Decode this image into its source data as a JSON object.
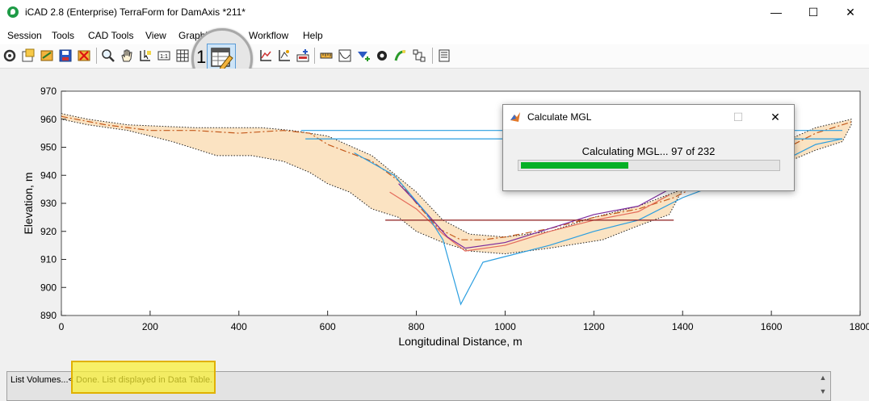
{
  "window": {
    "title": "iCAD 2.8  (Enterprise) TerraForm for DamAxis *211*",
    "minimize": "—",
    "maximize": "☐",
    "close": "✕"
  },
  "menu": [
    {
      "label": "Session"
    },
    {
      "label": "Tools"
    },
    {
      "label": "CAD Tools"
    },
    {
      "label": "View"
    },
    {
      "label": "Graphics"
    },
    {
      "label": "Workflow"
    },
    {
      "label": "Help"
    }
  ],
  "toolbar": {
    "icons": [
      "settings-icon",
      "open-session-icon",
      "import-icon",
      "save-icon",
      "delete-icon",
      "zoom-icon",
      "pan-hand-icon",
      "select-icon",
      "scale-1-1-icon",
      "grid-icon",
      "data-table-edit-icon",
      "profile-icon",
      "polyline-icon",
      "point-edit-icon",
      "export-icon",
      "measure-icon",
      "curve-icon",
      "insert-point-icon",
      "gear-icon",
      "path-icon",
      "network-icon",
      "report-icon"
    ],
    "magnifier_label": "1"
  },
  "chart_data": {
    "type": "line",
    "xlabel": "Longitudinal Distance, m",
    "ylabel": "Elevation, m",
    "xlim": [
      0,
      1800
    ],
    "ylim": [
      890,
      970
    ],
    "xticks": [
      0,
      200,
      400,
      600,
      800,
      1000,
      1200,
      1400,
      1600,
      1800
    ],
    "yticks": [
      890,
      900,
      910,
      920,
      930,
      940,
      950,
      960,
      970
    ],
    "band": {
      "upper": [
        [
          0,
          962
        ],
        [
          60,
          960
        ],
        [
          150,
          958
        ],
        [
          300,
          957
        ],
        [
          450,
          957
        ],
        [
          520,
          956
        ],
        [
          600,
          954
        ],
        [
          700,
          947
        ],
        [
          800,
          934
        ],
        [
          860,
          924
        ],
        [
          920,
          919
        ],
        [
          1000,
          918
        ],
        [
          1100,
          920
        ],
        [
          1200,
          925
        ],
        [
          1300,
          929
        ],
        [
          1400,
          935
        ],
        [
          1500,
          943
        ],
        [
          1600,
          950
        ],
        [
          1700,
          957
        ],
        [
          1780,
          960
        ]
      ],
      "lower": [
        [
          1780,
          958
        ],
        [
          1760,
          952
        ],
        [
          1700,
          949
        ],
        [
          1640,
          945
        ],
        [
          1560,
          941
        ],
        [
          1480,
          938
        ],
        [
          1400,
          935
        ],
        [
          1370,
          926
        ],
        [
          1300,
          922
        ],
        [
          1220,
          917
        ],
        [
          1100,
          914
        ],
        [
          1000,
          912
        ],
        [
          920,
          913
        ],
        [
          860,
          916
        ],
        [
          800,
          920
        ],
        [
          760,
          925
        ],
        [
          700,
          928
        ],
        [
          650,
          934
        ],
        [
          600,
          937
        ],
        [
          560,
          941
        ],
        [
          500,
          945
        ],
        [
          430,
          947
        ],
        [
          350,
          947
        ],
        [
          250,
          952
        ],
        [
          150,
          956
        ],
        [
          60,
          958
        ],
        [
          0,
          960
        ]
      ]
    },
    "series": [
      {
        "color": "#c45a1c",
        "dash": "8,3,2,3",
        "points": [
          [
            0,
            961
          ],
          [
            100,
            958
          ],
          [
            200,
            956
          ],
          [
            300,
            956
          ],
          [
            400,
            955
          ],
          [
            500,
            956
          ],
          [
            560,
            955
          ],
          [
            600,
            951
          ],
          [
            650,
            948
          ],
          [
            700,
            945
          ],
          [
            760,
            938
          ],
          [
            800,
            930
          ],
          [
            850,
            921
          ],
          [
            900,
            917
          ],
          [
            950,
            917
          ],
          [
            1000,
            918
          ],
          [
            1100,
            921
          ],
          [
            1200,
            925
          ],
          [
            1300,
            928
          ],
          [
            1380,
            932
          ],
          [
            1480,
            940
          ],
          [
            1600,
            947
          ],
          [
            1700,
            955
          ],
          [
            1780,
            959
          ]
        ]
      },
      {
        "color": "#e46a5a",
        "dash": "",
        "points": [
          [
            740,
            934
          ],
          [
            800,
            928
          ],
          [
            860,
            919
          ],
          [
            910,
            913
          ],
          [
            1000,
            915
          ],
          [
            1100,
            920
          ],
          [
            1200,
            924
          ],
          [
            1300,
            927
          ],
          [
            1370,
            933
          ]
        ]
      },
      {
        "color": "#7b2a9c",
        "dash": "",
        "points": [
          [
            760,
            937
          ],
          [
            820,
            927
          ],
          [
            870,
            918
          ],
          [
            910,
            914
          ],
          [
            1000,
            916
          ],
          [
            1100,
            921
          ],
          [
            1200,
            926
          ],
          [
            1300,
            929
          ],
          [
            1370,
            935
          ]
        ]
      },
      {
        "color": "#2a9ee0",
        "dash": "",
        "points": [
          [
            660,
            948
          ],
          [
            750,
            940
          ],
          [
            820,
            927
          ],
          [
            860,
            917
          ],
          [
            900,
            894
          ],
          [
            950,
            909
          ],
          [
            1000,
            911
          ],
          [
            1100,
            915
          ],
          [
            1200,
            920
          ],
          [
            1300,
            924
          ],
          [
            1400,
            932
          ],
          [
            1500,
            938
          ],
          [
            1600,
            943
          ],
          [
            1700,
            951
          ],
          [
            1760,
            953
          ]
        ]
      },
      {
        "color": "#2a9ee0",
        "dash": "",
        "points": [
          [
            540,
            956
          ],
          [
            1760,
            956
          ]
        ]
      },
      {
        "color": "#2a9ee0",
        "dash": "",
        "points": [
          [
            550,
            953
          ],
          [
            1760,
            953
          ]
        ]
      },
      {
        "color": "#8e1c1c",
        "dash": "",
        "points": [
          [
            730,
            924
          ],
          [
            1380,
            924
          ]
        ]
      }
    ]
  },
  "dialog": {
    "title": "Calculate MGL",
    "message": "Calculating MGL... 97 of 232",
    "progress_fraction": 0.418,
    "close": "✕",
    "maximize": "☐"
  },
  "status": {
    "text": "List Volumes...< Done. List displayed in Data Table.",
    "scroll_up": "▲",
    "scroll_down": "▼"
  }
}
